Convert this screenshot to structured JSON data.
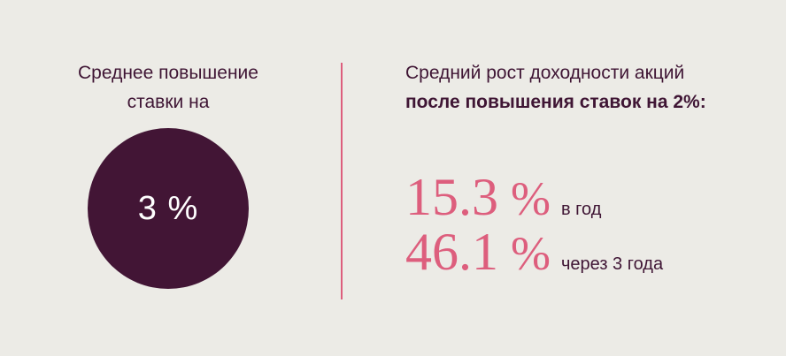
{
  "left": {
    "heading_line1": "Среднее повышение",
    "heading_line2": "ставки на",
    "circle_value": "3 %"
  },
  "right": {
    "heading_line1": "Средний рост доходности акций",
    "heading_line2": "после повышения ставок на 2%:",
    "stats": [
      {
        "value": "15.3",
        "unit": "%",
        "caption": "в год"
      },
      {
        "value": "46.1",
        "unit": "%",
        "caption": "через 3 года"
      }
    ]
  },
  "colors": {
    "background": "#ecebe6",
    "circle": "#421535",
    "accent": "#dd5e7d",
    "text": "#3f1534"
  }
}
